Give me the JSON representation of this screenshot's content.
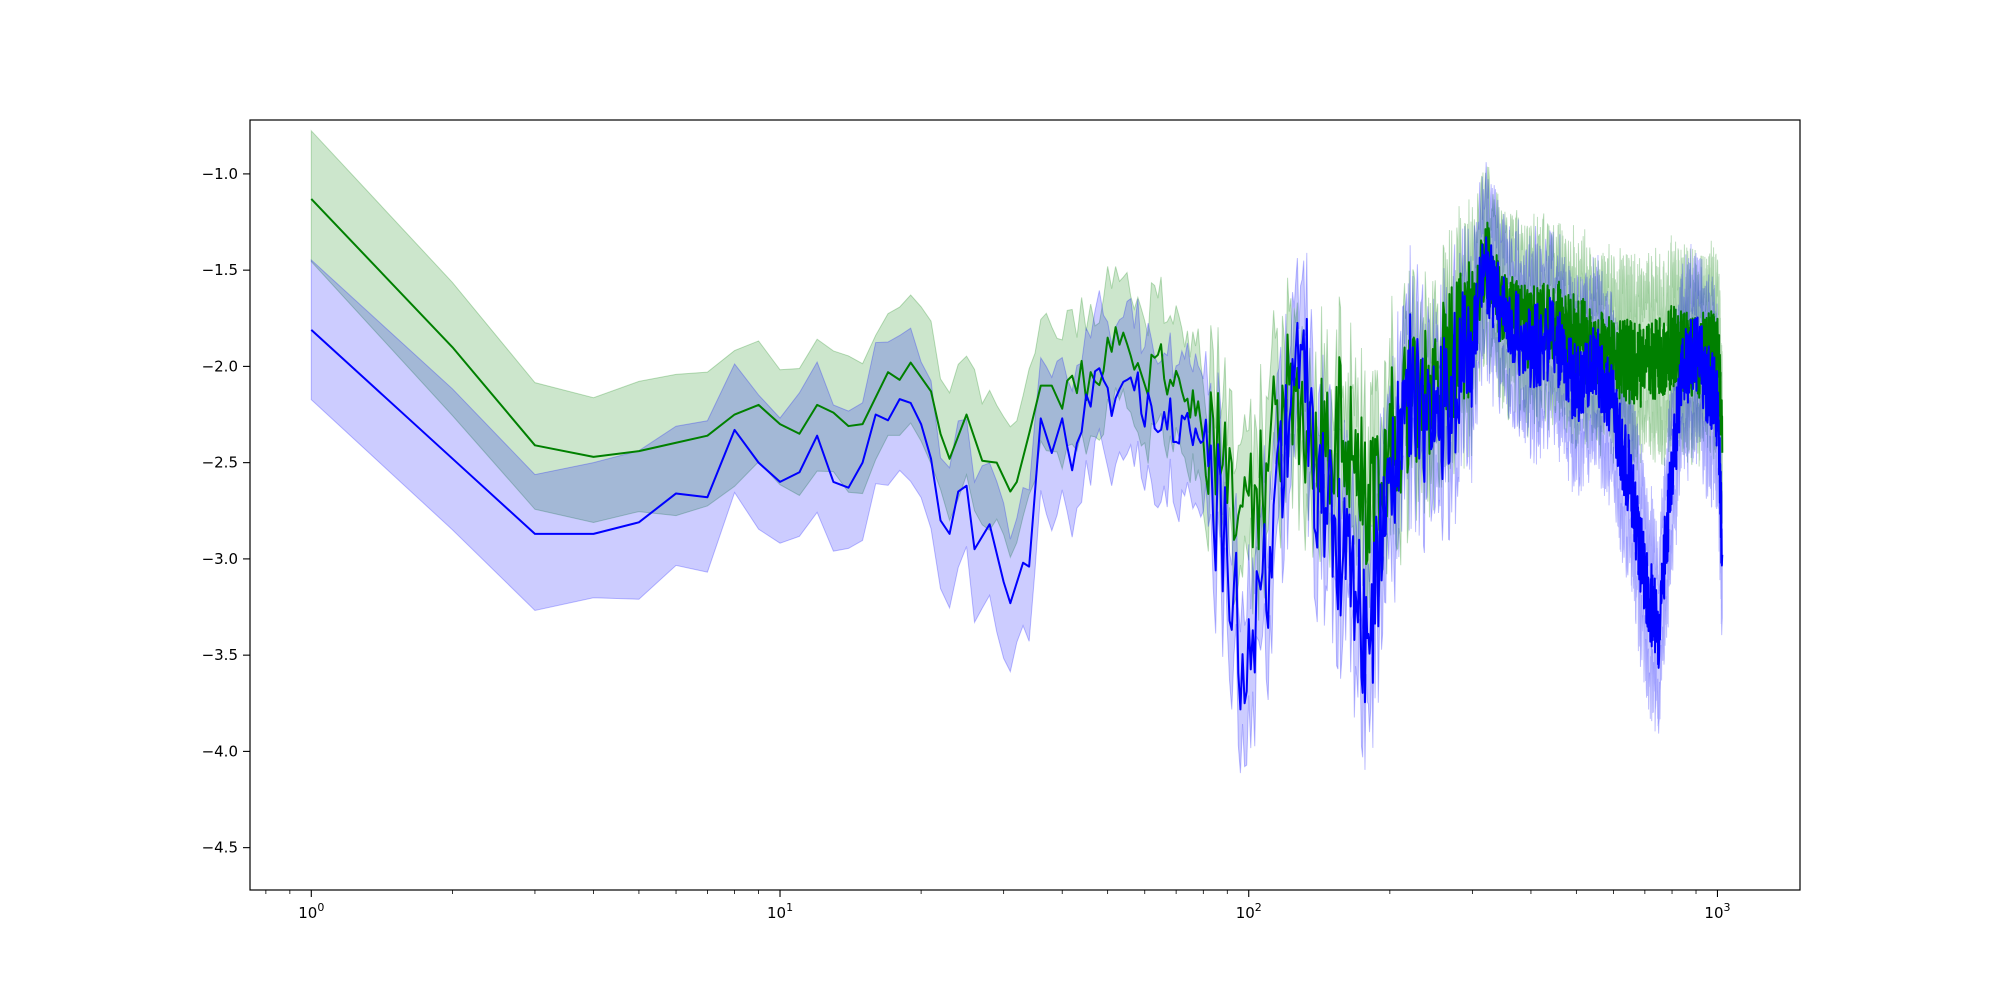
{
  "chart_data": {
    "type": "line",
    "title": "",
    "xlabel": "",
    "ylabel": "",
    "x_scale": "log",
    "xlim": [
      0.74,
      1500
    ],
    "ylim": [
      -4.72,
      -0.72
    ],
    "grid": false,
    "legend": "none",
    "x_ticks": [
      {
        "value": 1,
        "base": "10",
        "exp": "0"
      },
      {
        "value": 10,
        "base": "10",
        "exp": "1"
      },
      {
        "value": 100,
        "base": "10",
        "exp": "2"
      },
      {
        "value": 1000,
        "base": "10",
        "exp": "3"
      }
    ],
    "y_ticks": [
      {
        "value": -1.0,
        "label": "−1.0"
      },
      {
        "value": -1.5,
        "label": "−1.5"
      },
      {
        "value": -2.0,
        "label": "−2.0"
      },
      {
        "value": -2.5,
        "label": "−2.5"
      },
      {
        "value": -3.0,
        "label": "−3.0"
      },
      {
        "value": -3.5,
        "label": "−3.5"
      },
      {
        "value": -4.0,
        "label": "−4.0"
      },
      {
        "value": -4.5,
        "label": "−4.5"
      }
    ],
    "x_domain": [
      1,
      1024
    ],
    "series": [
      {
        "color": "#008000",
        "band_color": "#008000",
        "band_opacity": 0.2,
        "band_width": 0.33,
        "mean_points": [
          [
            1,
            -1.13
          ],
          [
            2,
            -1.9
          ],
          [
            3,
            -2.41
          ],
          [
            4,
            -2.47
          ],
          [
            5,
            -2.44
          ],
          [
            7,
            -2.36
          ],
          [
            8,
            -2.25
          ],
          [
            9,
            -2.2
          ],
          [
            10,
            -2.3
          ],
          [
            11,
            -2.35
          ],
          [
            12,
            -2.2
          ],
          [
            13,
            -2.24
          ],
          [
            14,
            -2.31
          ],
          [
            15,
            -2.3
          ],
          [
            17,
            -2.03
          ],
          [
            18,
            -2.07
          ],
          [
            19,
            -1.98
          ],
          [
            21,
            -2.13
          ],
          [
            22,
            -2.35
          ],
          [
            23,
            -2.48
          ],
          [
            25,
            -2.25
          ],
          [
            27,
            -2.49
          ],
          [
            29,
            -2.5
          ],
          [
            31,
            -2.65
          ],
          [
            32,
            -2.6
          ],
          [
            34,
            -2.35
          ],
          [
            36,
            -2.1
          ],
          [
            38,
            -2.1
          ],
          [
            40,
            -2.22
          ],
          [
            42,
            -2.05
          ],
          [
            45,
            -2.08
          ],
          [
            48,
            -2.0
          ],
          [
            50,
            -1.88
          ],
          [
            55,
            -1.93
          ],
          [
            60,
            -2.06
          ],
          [
            65,
            -1.98
          ],
          [
            70,
            -2.12
          ],
          [
            80,
            -2.27
          ],
          [
            90,
            -2.5
          ],
          [
            100,
            -2.85
          ],
          [
            110,
            -2.55
          ],
          [
            120,
            -2.1
          ],
          [
            140,
            -2.45
          ],
          [
            160,
            -2.3
          ],
          [
            180,
            -2.75
          ],
          [
            200,
            -2.35
          ],
          [
            250,
            -2.05
          ],
          [
            300,
            -1.78
          ],
          [
            320,
            -1.42
          ],
          [
            350,
            -1.72
          ],
          [
            400,
            -1.8
          ],
          [
            450,
            -1.75
          ],
          [
            500,
            -1.85
          ],
          [
            600,
            -1.95
          ],
          [
            700,
            -2.0
          ],
          [
            800,
            -1.9
          ],
          [
            900,
            -1.95
          ],
          [
            1000,
            -1.9
          ],
          [
            1024,
            -2.3
          ]
        ]
      },
      {
        "color": "#0000ff",
        "band_color": "#0000ff",
        "band_opacity": 0.2,
        "band_width": 0.36,
        "mean_points": [
          [
            1,
            -1.81
          ],
          [
            3,
            -2.87
          ],
          [
            4,
            -2.87
          ],
          [
            5,
            -2.81
          ],
          [
            6,
            -2.66
          ],
          [
            7,
            -2.68
          ],
          [
            8,
            -2.33
          ],
          [
            9,
            -2.5
          ],
          [
            10,
            -2.6
          ],
          [
            11,
            -2.55
          ],
          [
            12,
            -2.36
          ],
          [
            13,
            -2.6
          ],
          [
            14,
            -2.63
          ],
          [
            15,
            -2.5
          ],
          [
            16,
            -2.25
          ],
          [
            17,
            -2.28
          ],
          [
            18,
            -2.17
          ],
          [
            19,
            -2.19
          ],
          [
            20,
            -2.3
          ],
          [
            21,
            -2.48
          ],
          [
            22,
            -2.8
          ],
          [
            23,
            -2.87
          ],
          [
            24,
            -2.65
          ],
          [
            25,
            -2.62
          ],
          [
            26,
            -2.95
          ],
          [
            28,
            -2.82
          ],
          [
            30,
            -3.12
          ],
          [
            31,
            -3.23
          ],
          [
            33,
            -3.02
          ],
          [
            34,
            -3.04
          ],
          [
            36,
            -2.27
          ],
          [
            38,
            -2.45
          ],
          [
            40,
            -2.27
          ],
          [
            42,
            -2.5
          ],
          [
            45,
            -2.2
          ],
          [
            48,
            -2.1
          ],
          [
            52,
            -2.25
          ],
          [
            56,
            -2.05
          ],
          [
            60,
            -2.2
          ],
          [
            70,
            -2.28
          ],
          [
            80,
            -2.4
          ],
          [
            90,
            -3.0
          ],
          [
            95,
            -3.4
          ],
          [
            100,
            -3.55
          ],
          [
            105,
            -3.33
          ],
          [
            110,
            -3.1
          ],
          [
            120,
            -2.45
          ],
          [
            130,
            -1.9
          ],
          [
            140,
            -2.6
          ],
          [
            150,
            -2.8
          ],
          [
            170,
            -3.2
          ],
          [
            180,
            -3.5
          ],
          [
            190,
            -3.0
          ],
          [
            200,
            -2.6
          ],
          [
            220,
            -2.1
          ],
          [
            250,
            -2.35
          ],
          [
            300,
            -1.85
          ],
          [
            320,
            -1.5
          ],
          [
            350,
            -1.75
          ],
          [
            400,
            -1.9
          ],
          [
            450,
            -1.85
          ],
          [
            500,
            -2.1
          ],
          [
            550,
            -1.95
          ],
          [
            600,
            -2.2
          ],
          [
            650,
            -2.6
          ],
          [
            700,
            -3.1
          ],
          [
            750,
            -3.4
          ],
          [
            800,
            -2.5
          ],
          [
            850,
            -2.0
          ],
          [
            900,
            -1.9
          ],
          [
            950,
            -2.1
          ],
          [
            1000,
            -2.2
          ],
          [
            1024,
            -2.97
          ]
        ]
      }
    ]
  }
}
